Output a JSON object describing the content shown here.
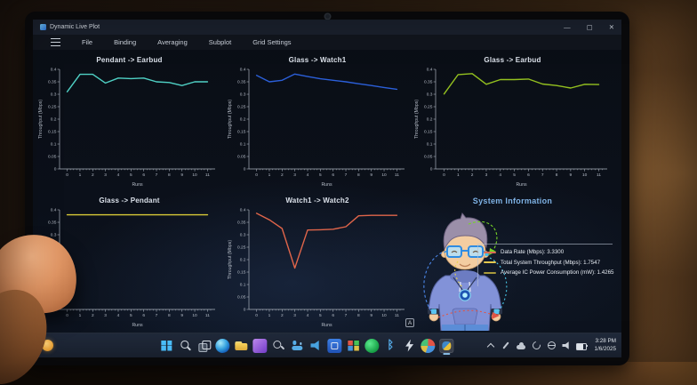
{
  "window": {
    "title": "Dynamic Live Plot",
    "controls": {
      "minimize": "—",
      "maximize": "▢",
      "close": "✕"
    }
  },
  "menu": {
    "items": [
      "File",
      "Binding",
      "Averaging",
      "Subplot",
      "Grid Settings"
    ]
  },
  "chart_data": [
    {
      "type": "line",
      "title": "Pendant -> Earbud",
      "color": "#4fd1c5",
      "xlabel": "Runs",
      "ylabel": "Throughput (Mbps)",
      "ylim": [
        0,
        0.4
      ],
      "ytick_step": 0.05,
      "x": [
        0,
        1,
        2,
        3,
        4,
        5,
        6,
        7,
        8,
        9,
        10,
        11
      ],
      "values": [
        0.31,
        0.38,
        0.38,
        0.345,
        0.365,
        0.363,
        0.365,
        0.35,
        0.347,
        0.335,
        0.35,
        0.35
      ]
    },
    {
      "type": "line",
      "title": "Glass -> Watch1",
      "color": "#2b5fd9",
      "xlabel": "Runs",
      "ylabel": "Throughput (Mbps)",
      "ylim": [
        0,
        0.4
      ],
      "ytick_step": 0.05,
      "x": [
        0,
        1,
        2,
        3,
        4,
        5,
        6,
        7,
        8,
        9,
        10,
        11
      ],
      "values": [
        0.376,
        0.35,
        0.356,
        0.381,
        0.371,
        0.362,
        0.356,
        0.35,
        0.342,
        0.335,
        0.327,
        0.32
      ]
    },
    {
      "type": "line",
      "title": "Glass -> Earbud",
      "color": "#94c11f",
      "xlabel": "Runs",
      "ylabel": "Throughput (Mbps)",
      "ylim": [
        0,
        0.4
      ],
      "ytick_step": 0.05,
      "x": [
        0,
        1,
        2,
        3,
        4,
        5,
        6,
        7,
        8,
        9,
        10,
        11
      ],
      "values": [
        0.301,
        0.379,
        0.383,
        0.34,
        0.359,
        0.359,
        0.361,
        0.341,
        0.335,
        0.325,
        0.34,
        0.339
      ]
    },
    {
      "type": "line",
      "title": "Glass -> Pendant",
      "color": "#d9ca37",
      "xlabel": "Runs",
      "ylabel": "Throughput (Mbps)",
      "ylim": [
        0,
        0.4
      ],
      "ytick_step": 0.05,
      "x": [
        0,
        1,
        2,
        3,
        4,
        5,
        6,
        7,
        8,
        9,
        10,
        11
      ],
      "values": [
        0.38,
        0.38,
        0.38,
        0.38,
        0.38,
        0.38,
        0.38,
        0.38,
        0.38,
        0.38,
        0.38,
        0.38
      ]
    },
    {
      "type": "line",
      "title": "Watch1 -> Watch2",
      "color": "#e0654a",
      "xlabel": "Runs",
      "ylabel": "Throughput (Mbps)",
      "ylim": [
        0,
        0.4
      ],
      "ytick_step": 0.05,
      "x": [
        0,
        1,
        2,
        3,
        4,
        5,
        6,
        7,
        8,
        9,
        10,
        11
      ],
      "values": [
        0.386,
        0.36,
        0.325,
        0.166,
        0.319,
        0.32,
        0.322,
        0.332,
        0.376,
        0.378,
        0.378,
        0.378
      ]
    }
  ],
  "system_info": {
    "title": "System Information",
    "badge": "A",
    "legend": [
      {
        "label": "Data Rate (Mbps)",
        "value": "3.3300",
        "color": "#d96a55"
      },
      {
        "label": "Total System Throughput (Mbps)",
        "value": "1.7547",
        "color": "#e3c84e"
      },
      {
        "label": "Average IC Power Consumption (mW)",
        "value": "1.4265",
        "color": "#a89a3c"
      }
    ]
  },
  "taskbar": {
    "weather": "sun-icon",
    "icons": [
      "start",
      "search",
      "task-view",
      "edge",
      "file-explorer",
      "purple-app",
      "key-tool",
      "people-app",
      "speaker-app",
      "blue-tile-app",
      "grid-app",
      "green-circle-app",
      "bluetooth",
      "zap-app",
      "pie-chart-app",
      "active-plot-app"
    ],
    "tray": {
      "icons": [
        "chevron-up",
        "pen",
        "cloud",
        "sync",
        "network",
        "volume",
        "battery"
      ],
      "time": "3:28 PM",
      "date": "1/6/2025"
    }
  }
}
